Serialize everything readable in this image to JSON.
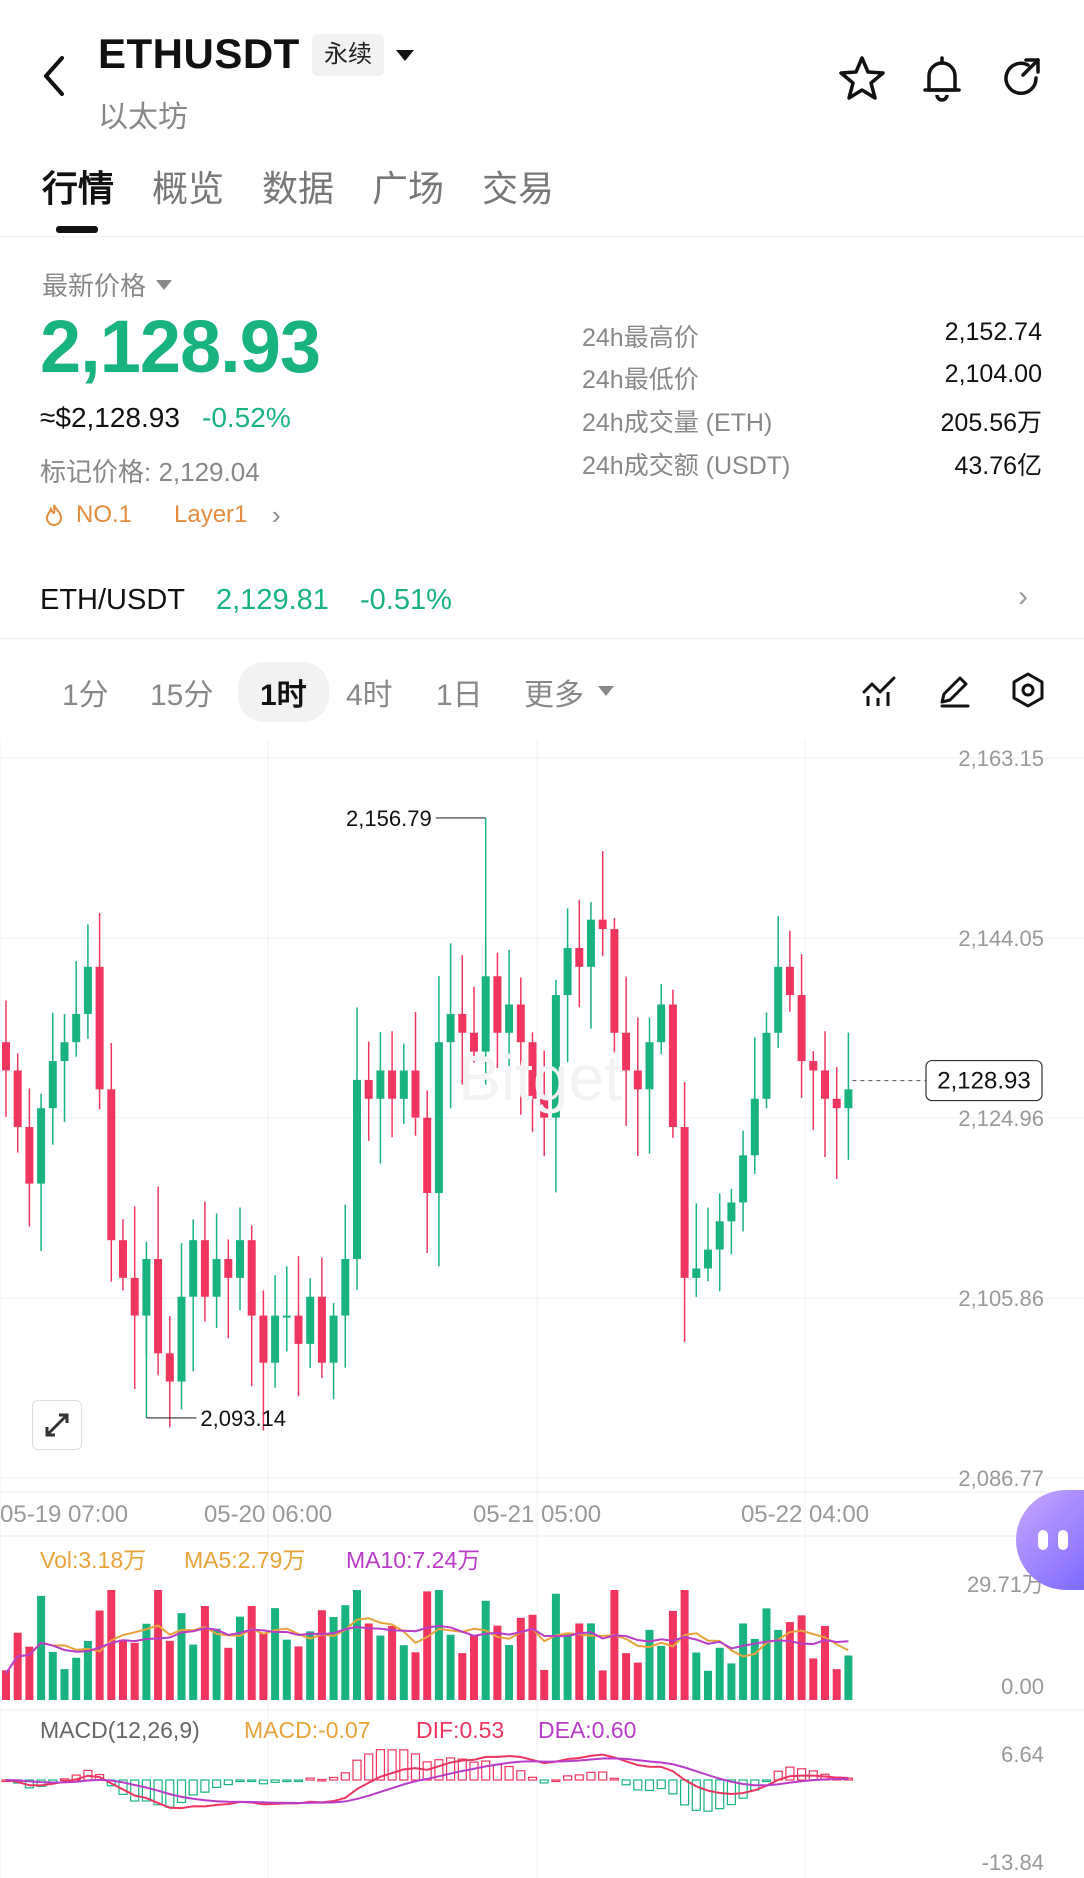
{
  "header": {
    "symbol": "ETHUSDT",
    "name_cn": "以太坊",
    "contract_type": "永续",
    "icons": [
      "back-icon",
      "star-icon",
      "bell-icon",
      "share-icon"
    ]
  },
  "tabs": [
    {
      "label": "行情",
      "active": true
    },
    {
      "label": "概览",
      "active": false
    },
    {
      "label": "数据",
      "active": false
    },
    {
      "label": "广场",
      "active": false
    },
    {
      "label": "交易",
      "active": false
    }
  ],
  "price": {
    "label": "最新价格",
    "last": "2,128.93",
    "usd": "≈$2,128.93",
    "change": "-0.52%",
    "mark": "标记价格: 2,129.04",
    "tags": [
      "NO.1",
      "Layer1"
    ]
  },
  "stats": [
    {
      "label": "24h最高价",
      "value": "2,152.74"
    },
    {
      "label": "24h最低价",
      "value": "2,104.00"
    },
    {
      "label": "24h成交量 (ETH)",
      "value": "205.56万"
    },
    {
      "label": "24h成交额 (USDT)",
      "value": "43.76亿"
    }
  ],
  "pair": {
    "name": "ETH/USDT",
    "price": "2,129.81",
    "change": "-0.51%"
  },
  "intervals": [
    {
      "label": "1分",
      "active": false
    },
    {
      "label": "15分",
      "active": false
    },
    {
      "label": "1时",
      "active": true
    },
    {
      "label": "4时",
      "active": false
    },
    {
      "label": "1日",
      "active": false
    },
    {
      "label": "更多",
      "active": false
    }
  ],
  "colors": {
    "up": "#19b37f",
    "down": "#f0355f",
    "ma5": "#e8a33a",
    "ma10": "#b93cc9",
    "grid": "#f0f0f0"
  },
  "chart_data": {
    "type": "candlestick",
    "price_axis": [
      "2,163.15",
      "2,144.05",
      "2,124.96",
      "2,105.86",
      "2,086.77"
    ],
    "ylim": [
      2086.77,
      2163.15
    ],
    "x_ticks": [
      "05-19 07:00",
      "05-20 06:00",
      "05-21 05:00",
      "05-22 04:00"
    ],
    "high_label": "2,156.79",
    "low_label": "2,093.14",
    "current_price": "2,128.93",
    "closes": [
      2130,
      2124,
      2118,
      2126,
      2131,
      2133,
      2136,
      2141,
      2128,
      2112,
      2108,
      2104,
      2110,
      2100,
      2097,
      2106,
      2112,
      2106,
      2110,
      2108,
      2112,
      2104,
      2099,
      2104,
      2104,
      2101,
      2106,
      2099,
      2104,
      2110,
      2129,
      2127,
      2130,
      2127,
      2130,
      2125,
      2117,
      2133,
      2136,
      2134,
      2132,
      2140,
      2134,
      2137,
      2133,
      2127,
      2125,
      2138,
      2143,
      2141,
      2146,
      2145,
      2134,
      2130,
      2128,
      2133,
      2137,
      2124,
      2108,
      2109,
      2111,
      2114,
      2116,
      2121,
      2127,
      2134,
      2141,
      2138,
      2131,
      2130,
      2127,
      2126,
      2128
    ],
    "volume": {
      "vol": "Vol:3.18万",
      "ma5": "MA5:2.79万",
      "ma10": "MA10:7.24万",
      "axis_top": "29.71万",
      "axis_bottom": "0.00"
    },
    "macd": {
      "label": "MACD(12,26,9)",
      "macd": "MACD:-0.07",
      "dif": "DIF:0.53",
      "dea": "DEA:0.60",
      "axis_top": "6.64",
      "axis_bottom": "-13.84"
    }
  }
}
